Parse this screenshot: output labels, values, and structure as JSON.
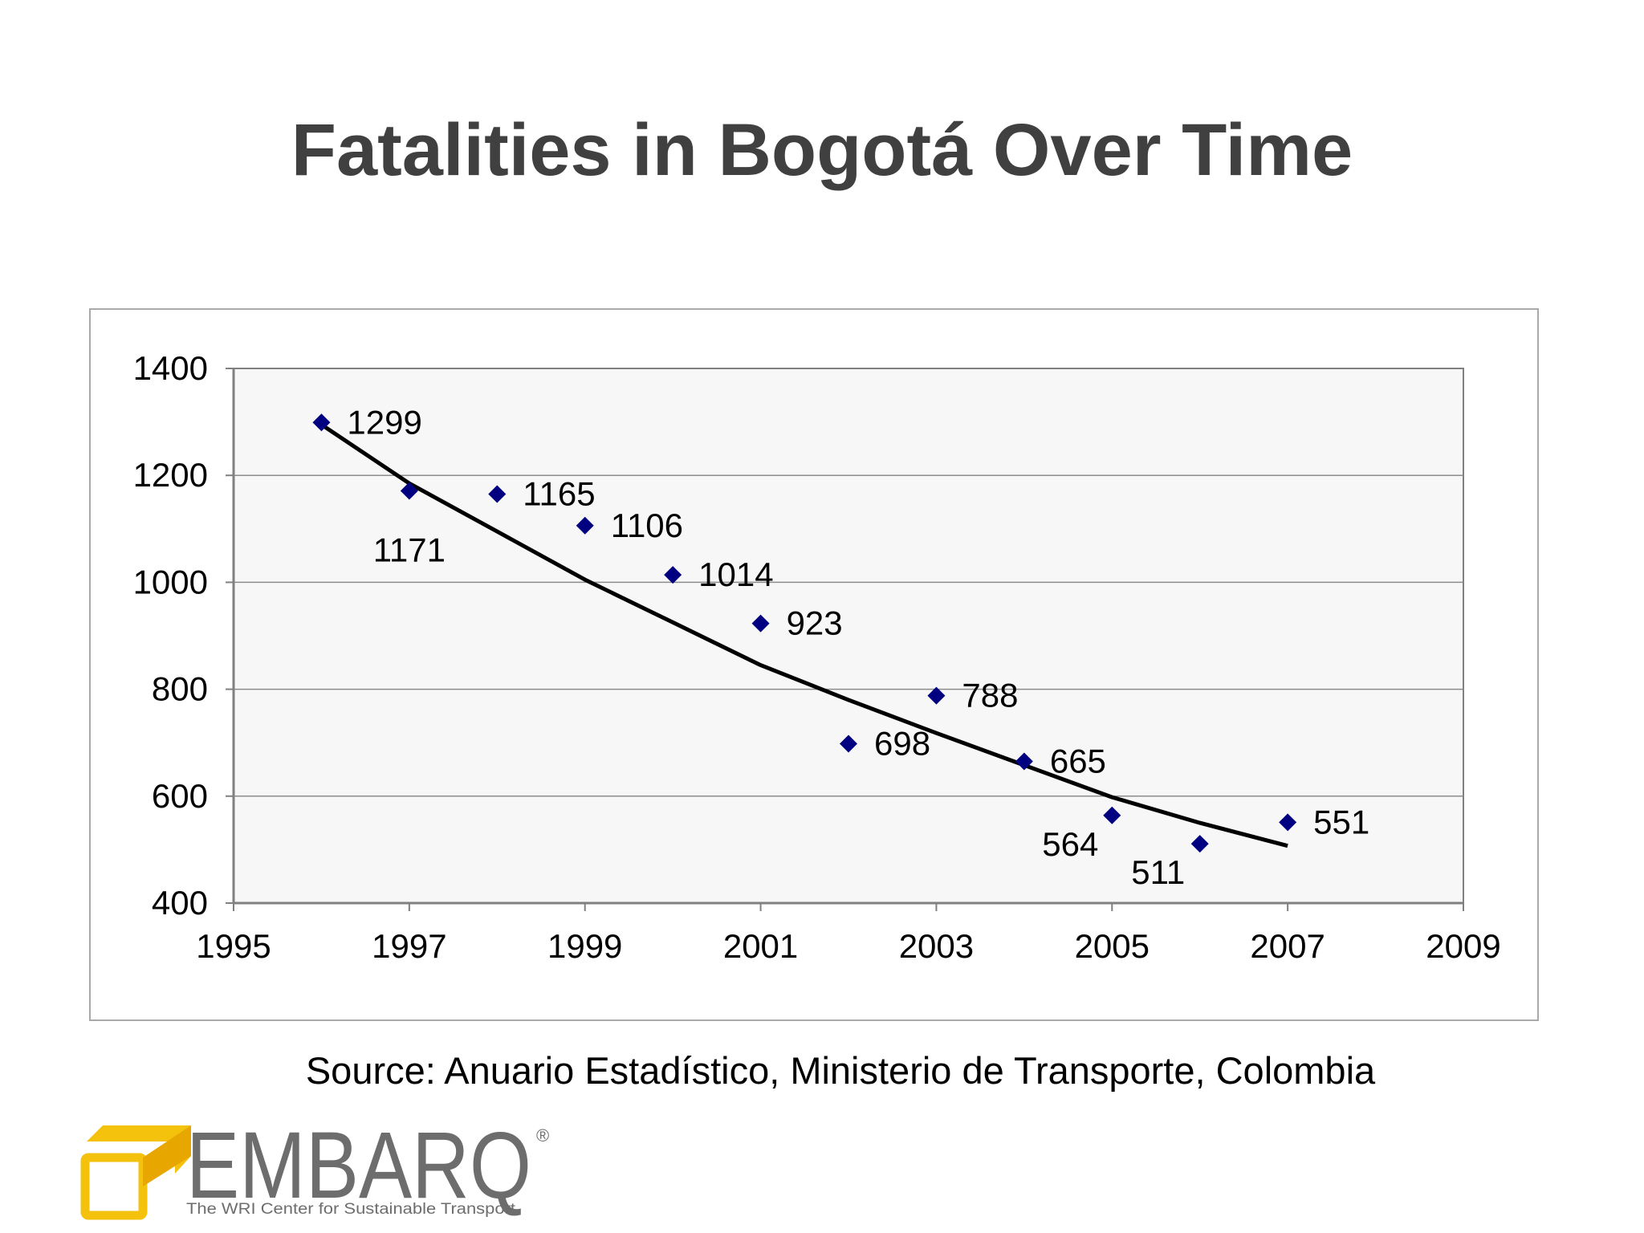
{
  "slide": {
    "title": "Fatalities in Bogotá Over Time",
    "source": "Source: Anuario Estadístico, Ministerio de Transporte, Colombia"
  },
  "logo": {
    "wordmark": "EMBARQ",
    "registered": "®",
    "tagline": "The WRI Center for Sustainable Transport",
    "colors": {
      "mark": "#f4c20d",
      "text": "#6d6d6d"
    }
  },
  "chart_data": {
    "type": "scatter",
    "title": "",
    "xlabel": "",
    "ylabel": "",
    "xlim": [
      1995,
      2009
    ],
    "ylim": [
      400,
      1400
    ],
    "xticks": [
      1995,
      1997,
      1999,
      2001,
      2003,
      2005,
      2007,
      2009
    ],
    "yticks": [
      400,
      600,
      800,
      1000,
      1200,
      1400
    ],
    "grid": {
      "horizontal": true,
      "vertical": false
    },
    "plot_area_color": "#f7f7f7",
    "marker": {
      "shape": "diamond",
      "color": "#000080"
    },
    "series": [
      {
        "points": [
          {
            "x": 1996,
            "y": 1299,
            "label": "1299",
            "label_pos": "right"
          },
          {
            "x": 1997,
            "y": 1171,
            "label": "1171",
            "label_pos": "below"
          },
          {
            "x": 1998,
            "y": 1165,
            "label": "1165",
            "label_pos": "right"
          },
          {
            "x": 1999,
            "y": 1106,
            "label": "1106",
            "label_pos": "right"
          },
          {
            "x": 2000,
            "y": 1014,
            "label": "1014",
            "label_pos": "right"
          },
          {
            "x": 2001,
            "y": 923,
            "label": "923",
            "label_pos": "right"
          },
          {
            "x": 2002,
            "y": 698,
            "label": "698",
            "label_pos": "right"
          },
          {
            "x": 2003,
            "y": 788,
            "label": "788",
            "label_pos": "right"
          },
          {
            "x": 2004,
            "y": 665,
            "label": "665",
            "label_pos": "right"
          },
          {
            "x": 2005,
            "y": 564,
            "label": "564",
            "label_pos": "below-left"
          },
          {
            "x": 2006,
            "y": 511,
            "label": "511",
            "label_pos": "below-left"
          },
          {
            "x": 2007,
            "y": 551,
            "label": "551",
            "label_pos": "right"
          }
        ]
      }
    ],
    "trendline": {
      "color": "#000000",
      "points": [
        {
          "x": 1996,
          "y": 1295
        },
        {
          "x": 1997,
          "y": 1185
        },
        {
          "x": 1998,
          "y": 1095
        },
        {
          "x": 1999,
          "y": 1005
        },
        {
          "x": 2000,
          "y": 925
        },
        {
          "x": 2001,
          "y": 845
        },
        {
          "x": 2002,
          "y": 780
        },
        {
          "x": 2003,
          "y": 718
        },
        {
          "x": 2004,
          "y": 658
        },
        {
          "x": 2005,
          "y": 598
        },
        {
          "x": 2006,
          "y": 550
        },
        {
          "x": 2007,
          "y": 507
        }
      ]
    }
  }
}
